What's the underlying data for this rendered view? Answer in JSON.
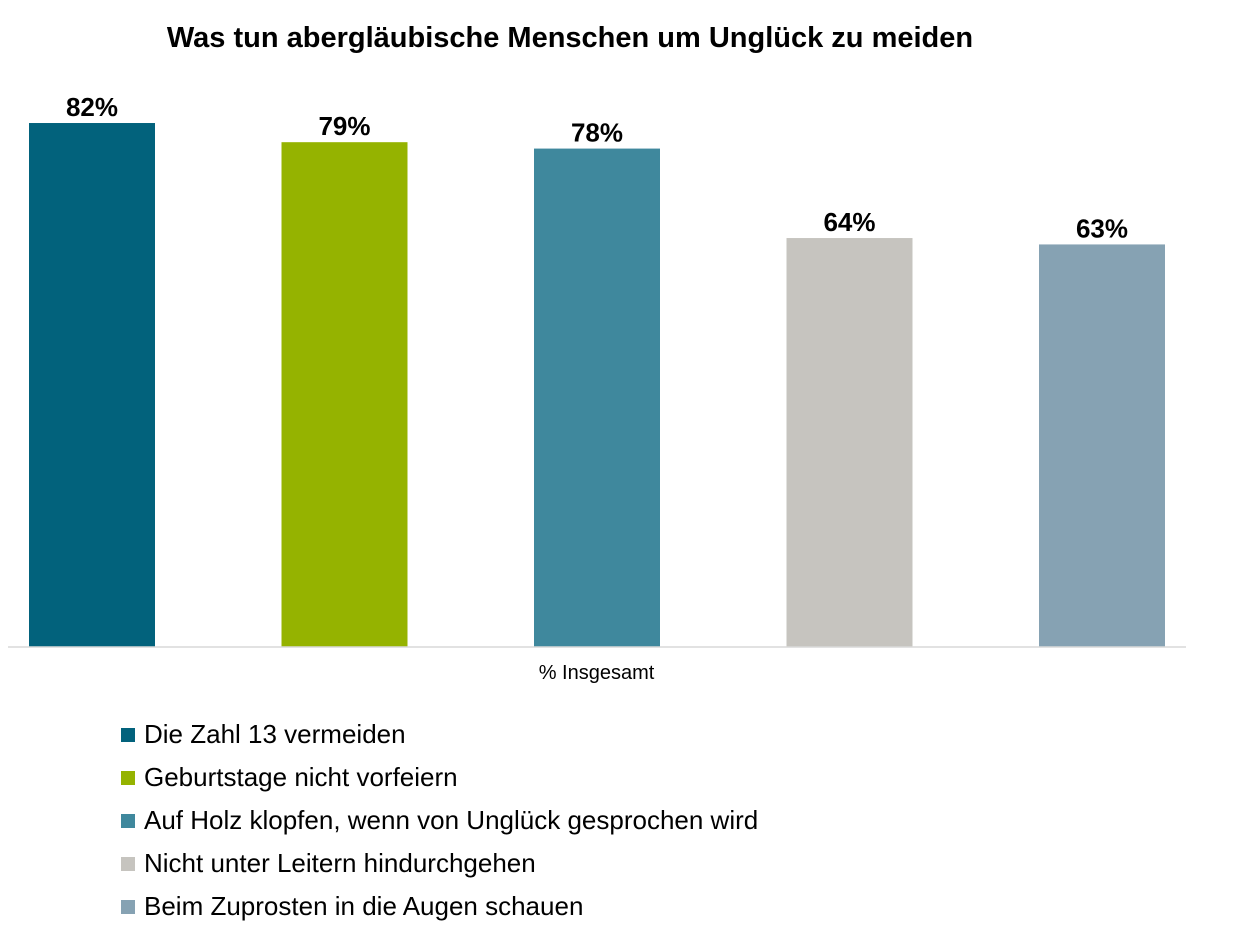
{
  "chart_data": {
    "type": "bar",
    "title": "Was tun abergläubische Menschen um Unglück zu meiden",
    "xlabel": "% Insgesamt",
    "ylabel": "",
    "ylim": [
      0,
      100
    ],
    "grid": false,
    "legend_position": "bottom",
    "categories": [
      "Die Zahl 13 vermeiden",
      "Geburtstage nicht vorfeiern",
      "Auf Holz klopfen, wenn von Unglück gesprochen wird",
      "Nicht unter Leitern hindurchgehen",
      "Beim Zuprosten in die Augen schauen"
    ],
    "values": [
      82,
      79,
      78,
      64,
      63
    ],
    "value_labels": [
      "82%",
      "79%",
      "78%",
      "64%",
      "63%"
    ],
    "colors": [
      "#02627c",
      "#95b300",
      "#3f889d",
      "#c6c4bf",
      "#86a2b3"
    ]
  }
}
